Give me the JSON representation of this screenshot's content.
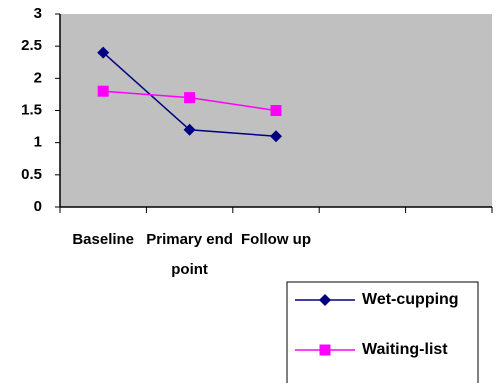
{
  "chart_data": {
    "type": "line",
    "categories": [
      "Baseline",
      "Primary end point",
      "Follow up",
      null,
      null
    ],
    "series": [
      {
        "name": "Wet-cupping",
        "color": "#000080",
        "marker": "diamond",
        "values": [
          2.4,
          1.2,
          1.1,
          null,
          null
        ]
      },
      {
        "name": "Waiting-list",
        "color": "#ff00ff",
        "marker": "square",
        "values": [
          1.8,
          1.7,
          1.5,
          null,
          null
        ]
      }
    ],
    "ylim": [
      0,
      3
    ],
    "yticks": [
      0,
      0.5,
      1,
      1.5,
      2,
      2.5,
      3
    ],
    "grid": false,
    "plot_background": "#c0c0c0",
    "legend": "bottom-right"
  }
}
